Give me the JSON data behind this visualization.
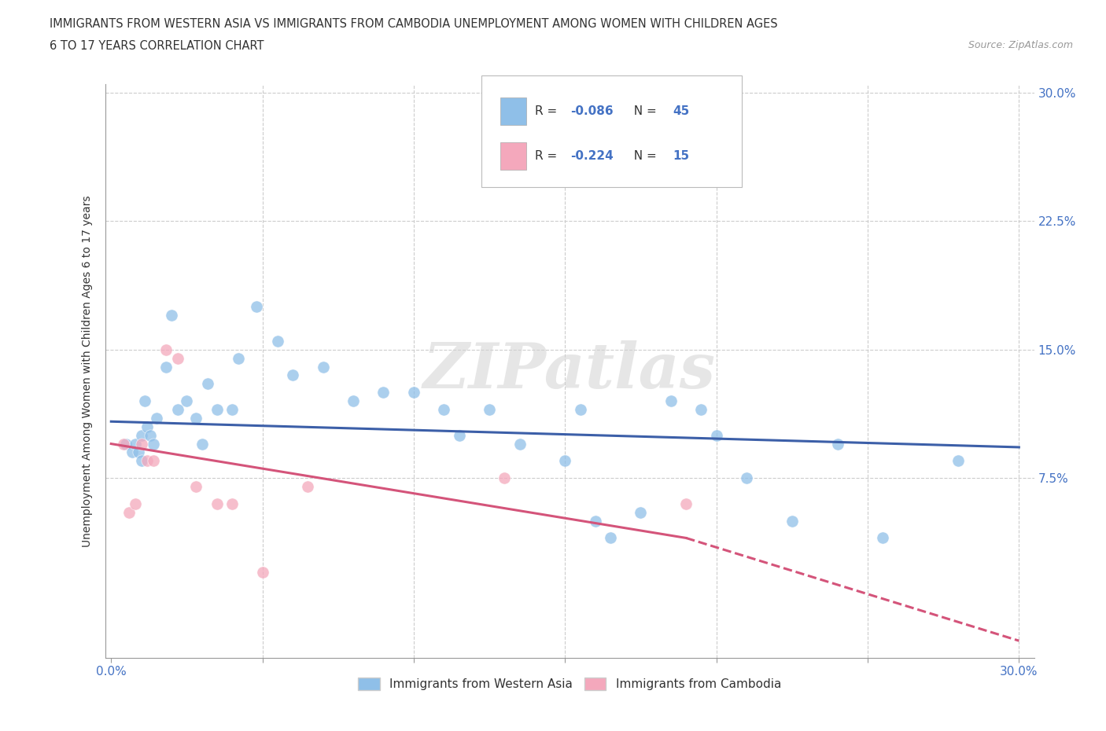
{
  "title_line1": "IMMIGRANTS FROM WESTERN ASIA VS IMMIGRANTS FROM CAMBODIA UNEMPLOYMENT AMONG WOMEN WITH CHILDREN AGES",
  "title_line2": "6 TO 17 YEARS CORRELATION CHART",
  "source_text": "Source: ZipAtlas.com",
  "ylabel": "Unemployment Among Women with Children Ages 6 to 17 years",
  "xlim": [
    -0.002,
    0.305
  ],
  "ylim": [
    -0.03,
    0.305
  ],
  "background_color": "#ffffff",
  "watermark_text": "ZIPatlas",
  "color_western_asia": "#8FBFE8",
  "color_cambodia": "#F4A8BC",
  "color_line_western": "#3C5FA8",
  "color_line_cambodia": "#D4547A",
  "grid_color": "#CCCCCC",
  "western_asia_x": [
    0.005,
    0.007,
    0.008,
    0.009,
    0.01,
    0.01,
    0.011,
    0.012,
    0.013,
    0.014,
    0.015,
    0.018,
    0.02,
    0.022,
    0.025,
    0.028,
    0.03,
    0.032,
    0.035,
    0.04,
    0.042,
    0.048,
    0.055,
    0.06,
    0.07,
    0.08,
    0.09,
    0.1,
    0.11,
    0.115,
    0.125,
    0.135,
    0.15,
    0.155,
    0.16,
    0.165,
    0.175,
    0.185,
    0.195,
    0.2,
    0.21,
    0.225,
    0.24,
    0.255,
    0.28
  ],
  "western_asia_y": [
    0.095,
    0.09,
    0.095,
    0.09,
    0.085,
    0.1,
    0.12,
    0.105,
    0.1,
    0.095,
    0.11,
    0.14,
    0.17,
    0.115,
    0.12,
    0.11,
    0.095,
    0.13,
    0.115,
    0.115,
    0.145,
    0.175,
    0.155,
    0.135,
    0.14,
    0.12,
    0.125,
    0.125,
    0.115,
    0.1,
    0.115,
    0.095,
    0.085,
    0.115,
    0.05,
    0.04,
    0.055,
    0.12,
    0.115,
    0.1,
    0.075,
    0.05,
    0.095,
    0.04,
    0.085
  ],
  "cambodia_x": [
    0.004,
    0.006,
    0.008,
    0.01,
    0.012,
    0.014,
    0.018,
    0.022,
    0.028,
    0.035,
    0.04,
    0.05,
    0.065,
    0.13,
    0.19
  ],
  "cambodia_y": [
    0.095,
    0.055,
    0.06,
    0.095,
    0.085,
    0.085,
    0.15,
    0.145,
    0.07,
    0.06,
    0.06,
    0.02,
    0.07,
    0.075,
    0.06
  ],
  "western_scatter_size": 120,
  "cambodia_scatter_size": 120,
  "trend_wa_x0": 0.0,
  "trend_wa_x1": 0.3,
  "trend_wa_y0": 0.108,
  "trend_wa_y1": 0.093,
  "trend_cam_solid_x0": 0.0,
  "trend_cam_solid_x1": 0.19,
  "trend_cam_y0": 0.095,
  "trend_cam_y1": 0.04,
  "trend_cam_dash_x0": 0.19,
  "trend_cam_dash_x1": 0.3,
  "trend_cam_dash_y0": 0.04,
  "trend_cam_dash_y1": -0.02
}
